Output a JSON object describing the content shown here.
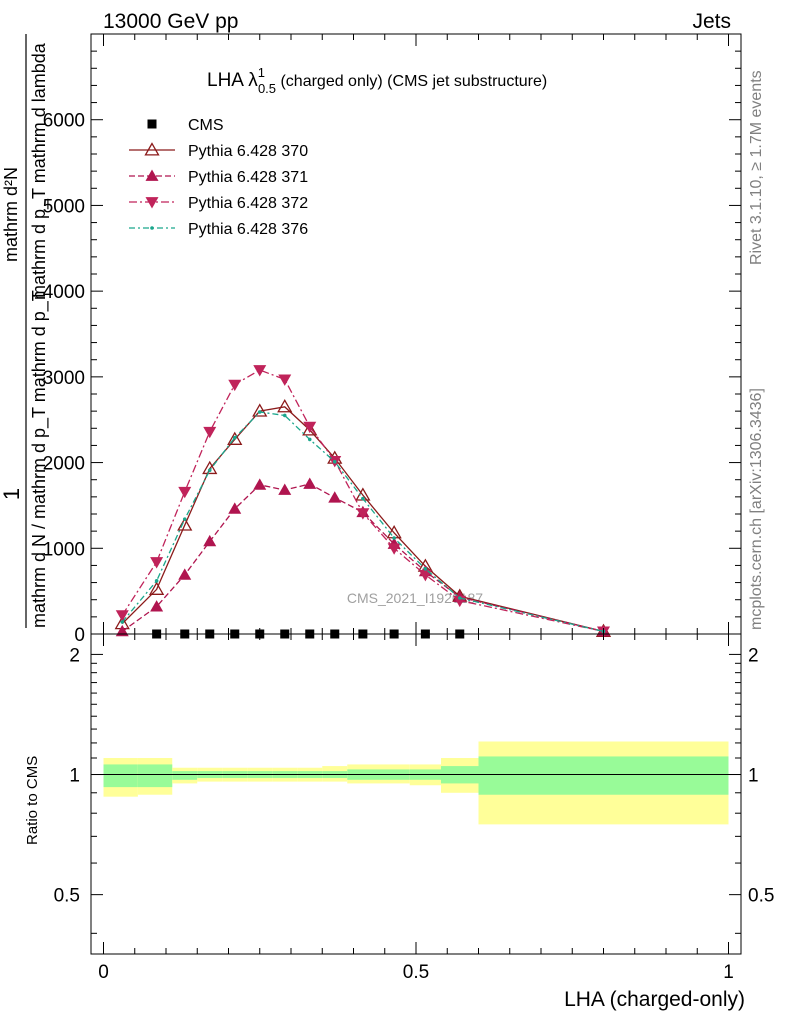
{
  "header": {
    "left": "13000 GeV pp",
    "right": "Jets"
  },
  "side_labels": {
    "rivet": "Rivet 3.1.10, ≥ 1.7M events",
    "mcplots": "mcplots.cern.ch [arXiv:1306.3436]"
  },
  "watermark": "CMS_2021_I1920187",
  "chart_data": [
    {
      "type": "line",
      "title": "LHA λ",
      "title_sup": "1",
      "title_sub": "0.5",
      "title_suffix": " (charged only) (CMS jet substructure)",
      "ylabel_numerator": "1",
      "ylabel_denominator": "mathrm d N / mathrm d p_T mathrm d p_T",
      "ylabel_rot_num": "mathrm d²N",
      "ylabel_rot_den": "mathrm d p_T mathrm d lambda",
      "xlim": [
        -0.02,
        1.02
      ],
      "ylim": [
        0,
        7000
      ],
      "y_ticks": [
        0,
        1000,
        2000,
        3000,
        4000,
        5000,
        6000
      ],
      "y_tick_labels": [
        "0",
        "1000",
        "2000",
        "3000",
        "4000",
        "5000",
        "6000"
      ],
      "cms": {
        "name": "CMS",
        "color": "#000000",
        "x": [
          0.085,
          0.13,
          0.17,
          0.21,
          0.25,
          0.29,
          0.33,
          0.37,
          0.415,
          0.465,
          0.515,
          0.57
        ],
        "values": [
          0,
          0,
          0,
          0,
          0,
          0,
          0,
          0,
          0,
          0,
          0,
          0
        ]
      },
      "series": [
        {
          "name": "Pythia 6.428 370",
          "color": "#8b1a1a",
          "dash": "",
          "marker": "triangle-open",
          "x": [
            0.03,
            0.085,
            0.13,
            0.17,
            0.21,
            0.25,
            0.29,
            0.33,
            0.37,
            0.415,
            0.465,
            0.515,
            0.57,
            0.8
          ],
          "values": [
            120,
            520,
            1270,
            1930,
            2270,
            2600,
            2650,
            2380,
            2050,
            1620,
            1180,
            790,
            440,
            30
          ]
        },
        {
          "name": "Pythia 6.428 371",
          "color": "#b0154f",
          "dash": "6,3",
          "marker": "triangle-up",
          "x": [
            0.03,
            0.085,
            0.13,
            0.17,
            0.21,
            0.25,
            0.29,
            0.33,
            0.37,
            0.415,
            0.465,
            0.515,
            0.57,
            0.8
          ],
          "values": [
            30,
            320,
            690,
            1080,
            1460,
            1740,
            1680,
            1750,
            1590,
            1420,
            1050,
            730,
            430,
            30
          ]
        },
        {
          "name": "Pythia 6.428 372",
          "color": "#c0235a",
          "dash": "8,3,2,3",
          "marker": "triangle-down",
          "x": [
            0.03,
            0.085,
            0.13,
            0.17,
            0.21,
            0.25,
            0.29,
            0.33,
            0.37,
            0.415,
            0.465,
            0.515,
            0.57,
            0.8
          ],
          "values": [
            220,
            840,
            1660,
            2360,
            2910,
            3080,
            2970,
            2420,
            2020,
            1410,
            1000,
            690,
            390,
            30
          ]
        },
        {
          "name": "Pythia 6.428 376",
          "color": "#1aa68c",
          "dash": "6,3,2,3",
          "marker": "dot",
          "x": [
            0.03,
            0.085,
            0.13,
            0.17,
            0.21,
            0.25,
            0.29,
            0.33,
            0.37,
            0.415,
            0.465,
            0.515,
            0.57,
            0.8
          ],
          "values": [
            140,
            620,
            1340,
            1910,
            2290,
            2590,
            2550,
            2270,
            2010,
            1580,
            1120,
            760,
            420,
            30
          ]
        }
      ]
    },
    {
      "type": "area",
      "ylabel": "Ratio to CMS",
      "xlabel": "LHA (charged-only)",
      "xlim": [
        -0.02,
        1.02
      ],
      "ylim": [
        0.355,
        2.25
      ],
      "x_ticks": [
        0,
        0.5,
        1
      ],
      "x_tick_labels": [
        "0",
        "0.5",
        "1"
      ],
      "y_ticks": [
        0.5,
        1,
        2
      ],
      "y_tick_labels": [
        "0.5",
        "1",
        "2"
      ],
      "reference": 1,
      "bins": [
        {
          "lo": 0.0,
          "hi": 0.055,
          "green": [
            0.93,
            1.06
          ],
          "yellow": [
            0.88,
            1.1
          ]
        },
        {
          "lo": 0.055,
          "hi": 0.11,
          "green": [
            0.93,
            1.06
          ],
          "yellow": [
            0.89,
            1.1
          ]
        },
        {
          "lo": 0.11,
          "hi": 0.15,
          "green": [
            0.97,
            1.02
          ],
          "yellow": [
            0.95,
            1.04
          ]
        },
        {
          "lo": 0.15,
          "hi": 0.19,
          "green": [
            0.98,
            1.02
          ],
          "yellow": [
            0.96,
            1.04
          ]
        },
        {
          "lo": 0.19,
          "hi": 0.23,
          "green": [
            0.98,
            1.02
          ],
          "yellow": [
            0.96,
            1.04
          ]
        },
        {
          "lo": 0.23,
          "hi": 0.27,
          "green": [
            0.98,
            1.02
          ],
          "yellow": [
            0.96,
            1.04
          ]
        },
        {
          "lo": 0.27,
          "hi": 0.31,
          "green": [
            0.98,
            1.02
          ],
          "yellow": [
            0.96,
            1.04
          ]
        },
        {
          "lo": 0.31,
          "hi": 0.35,
          "green": [
            0.98,
            1.02
          ],
          "yellow": [
            0.96,
            1.04
          ]
        },
        {
          "lo": 0.35,
          "hi": 0.39,
          "green": [
            0.98,
            1.02
          ],
          "yellow": [
            0.96,
            1.05
          ]
        },
        {
          "lo": 0.39,
          "hi": 0.44,
          "green": [
            0.97,
            1.03
          ],
          "yellow": [
            0.95,
            1.06
          ]
        },
        {
          "lo": 0.44,
          "hi": 0.49,
          "green": [
            0.97,
            1.03
          ],
          "yellow": [
            0.95,
            1.06
          ]
        },
        {
          "lo": 0.49,
          "hi": 0.54,
          "green": [
            0.97,
            1.03
          ],
          "yellow": [
            0.94,
            1.06
          ]
        },
        {
          "lo": 0.54,
          "hi": 0.6,
          "green": [
            0.95,
            1.05
          ],
          "yellow": [
            0.9,
            1.1
          ]
        },
        {
          "lo": 0.6,
          "hi": 1.0,
          "green": [
            0.89,
            1.11
          ],
          "yellow": [
            0.75,
            1.21
          ]
        }
      ],
      "colors": {
        "green": "#98fb98",
        "yellow": "#ffff99"
      }
    }
  ]
}
